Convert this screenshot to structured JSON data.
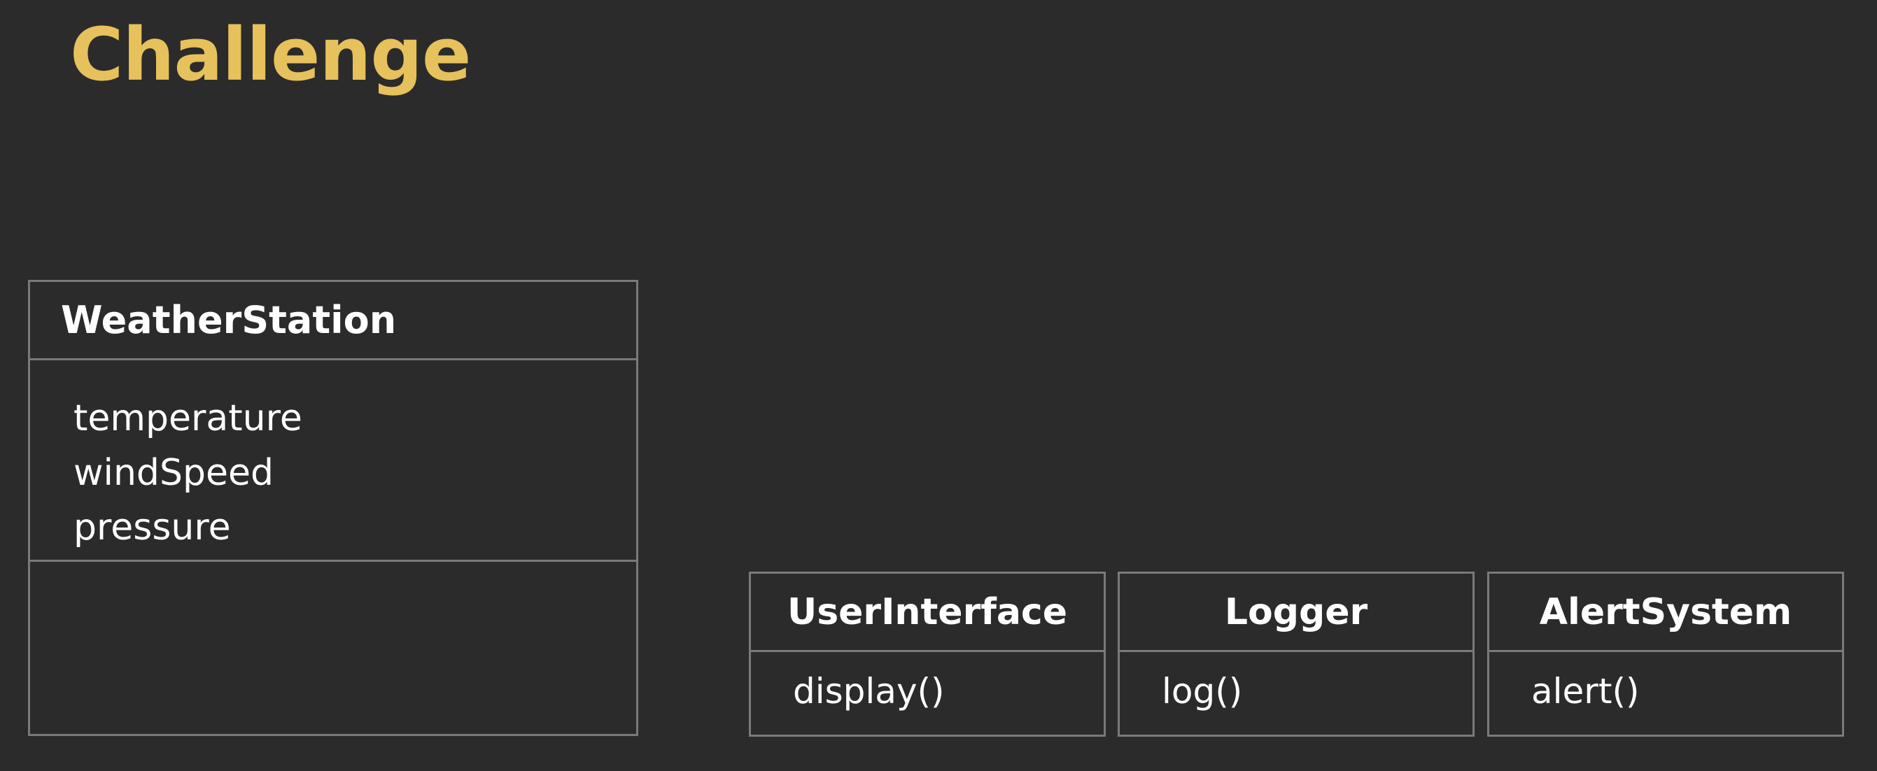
{
  "slide": {
    "title": "Challenge",
    "accent_color": "#e6c15c",
    "background_color": "#2b2b2b",
    "border_color": "#7a7a7a"
  },
  "diagram": {
    "classes": [
      {
        "name": "WeatherStation",
        "attributes": [
          "temperature",
          "windSpeed",
          "pressure"
        ],
        "methods": []
      },
      {
        "name": "UserInterface",
        "attributes": [],
        "methods": [
          "display()"
        ]
      },
      {
        "name": "Logger",
        "attributes": [],
        "methods": [
          "log()"
        ]
      },
      {
        "name": "AlertSystem",
        "attributes": [],
        "methods": [
          "alert()"
        ]
      }
    ]
  }
}
